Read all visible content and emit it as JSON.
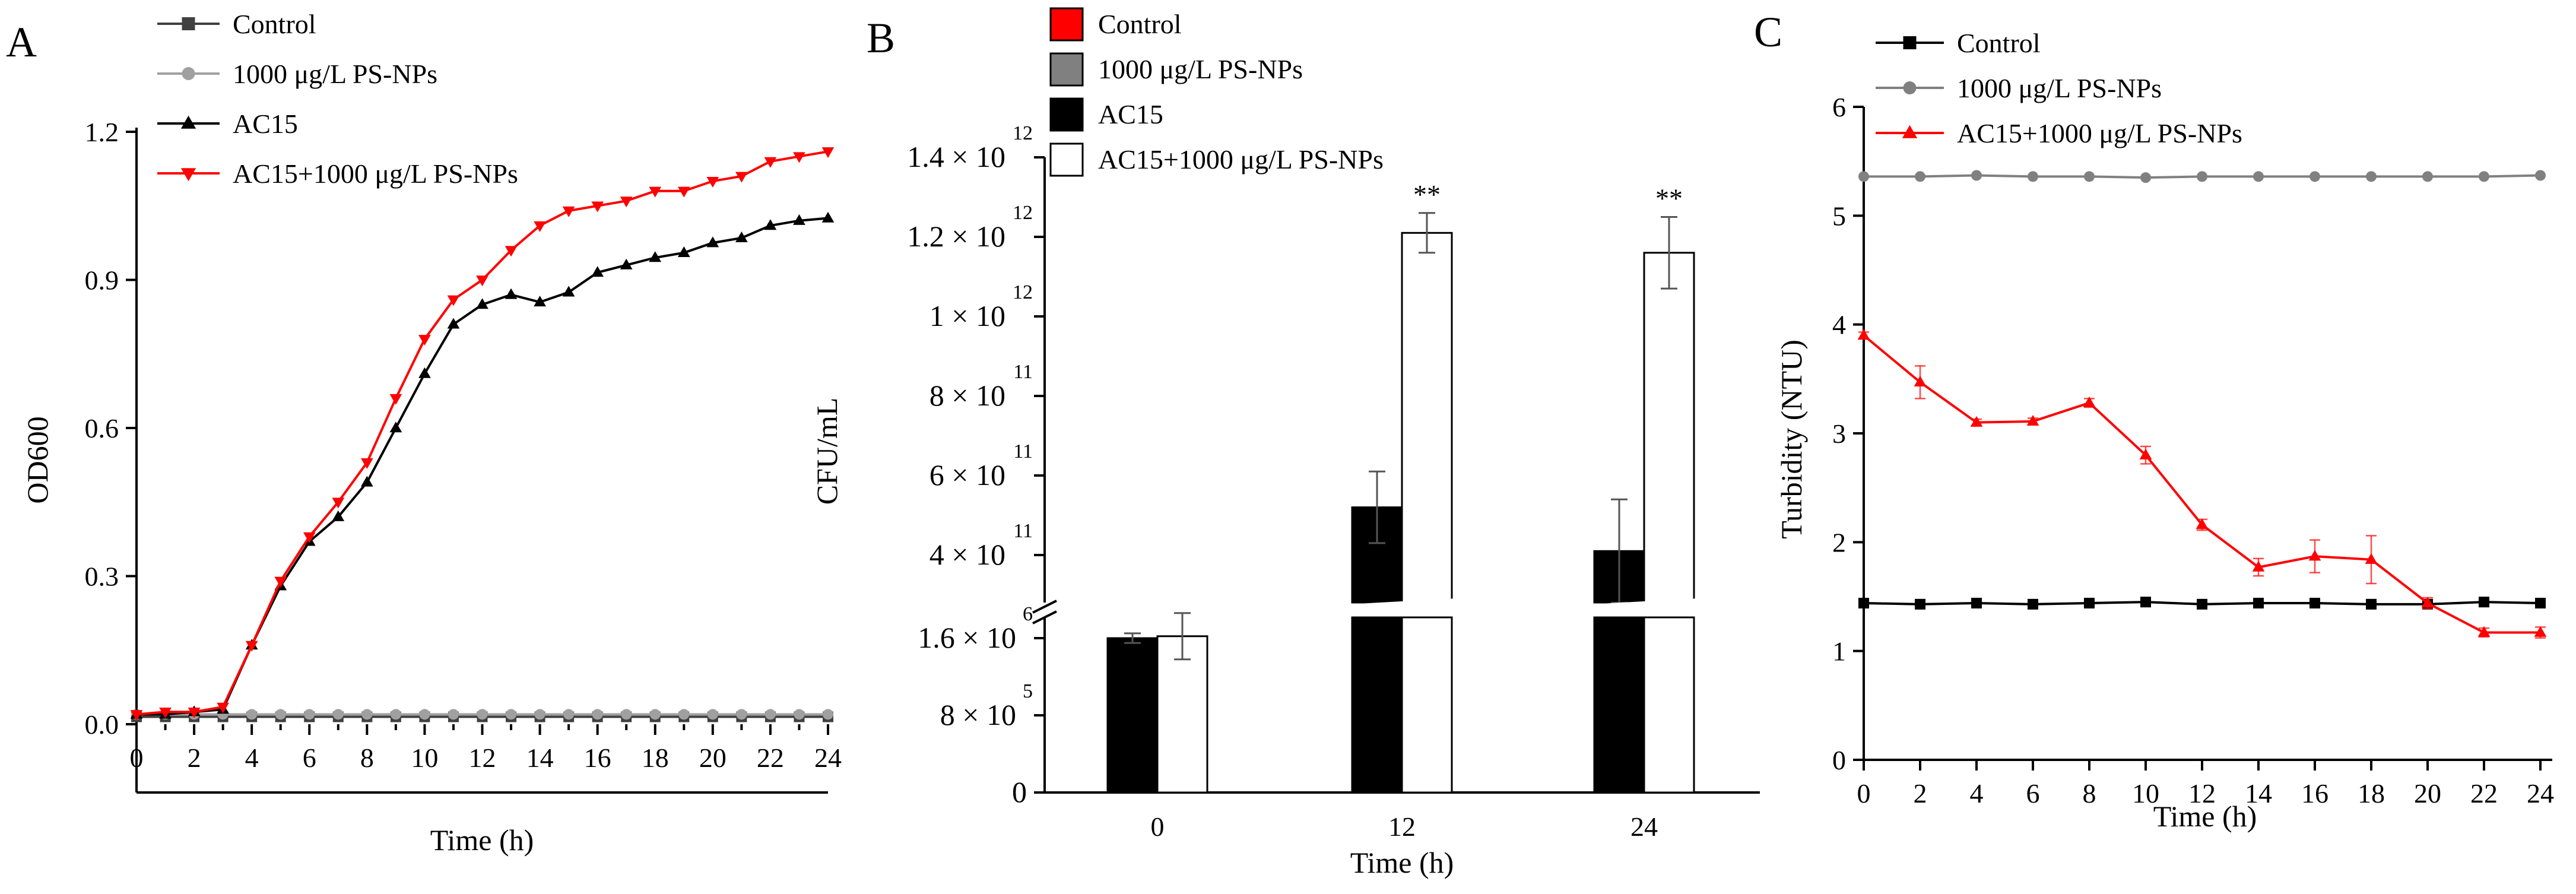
{
  "chart_data": [
    {
      "panel_label": "A",
      "type": "line",
      "title": "",
      "xlabel": "Time (h)",
      "ylabel": "OD600",
      "xlim": [
        0,
        24
      ],
      "ylim": [
        0,
        1.2
      ],
      "x_ticks": [
        "0",
        "2",
        "4",
        "6",
        "8",
        "10",
        "12",
        "14",
        "16",
        "18",
        "20",
        "22",
        "24"
      ],
      "y_ticks": [
        "0.0",
        "0.3",
        "0.6",
        "0.9",
        "1.2"
      ],
      "legend": "top-left",
      "x": [
        0,
        1,
        2,
        3,
        4,
        5,
        6,
        7,
        8,
        9,
        10,
        11,
        12,
        13,
        14,
        15,
        16,
        17,
        18,
        19,
        20,
        21,
        22,
        23,
        24
      ],
      "series": [
        {
          "name": "Control",
          "color": "#404040",
          "marker": "square",
          "values": [
            0.015,
            0.015,
            0.015,
            0.015,
            0.015,
            0.015,
            0.015,
            0.015,
            0.015,
            0.015,
            0.015,
            0.015,
            0.015,
            0.015,
            0.015,
            0.015,
            0.015,
            0.015,
            0.015,
            0.015,
            0.015,
            0.015,
            0.015,
            0.015,
            0.015
          ]
        },
        {
          "name": "1000 μg/L PS-NPs",
          "color": "#a0a0a0",
          "marker": "circle",
          "values": [
            0.02,
            0.02,
            0.02,
            0.02,
            0.02,
            0.02,
            0.02,
            0.02,
            0.02,
            0.02,
            0.02,
            0.02,
            0.02,
            0.02,
            0.02,
            0.02,
            0.02,
            0.02,
            0.02,
            0.02,
            0.02,
            0.02,
            0.02,
            0.02,
            0.02
          ]
        },
        {
          "name": "AC15",
          "color": "#000000",
          "marker": "triangle-up",
          "values": [
            0.02,
            0.02,
            0.025,
            0.03,
            0.16,
            0.28,
            0.37,
            0.42,
            0.49,
            0.6,
            0.71,
            0.81,
            0.85,
            0.87,
            0.855,
            0.875,
            0.915,
            0.93,
            0.945,
            0.955,
            0.975,
            0.985,
            1.01,
            1.02,
            1.025
          ]
        },
        {
          "name": "AC15+1000 μg/L PS-NPs",
          "color": "#ff0000",
          "marker": "triangle-down",
          "values": [
            0.02,
            0.025,
            0.025,
            0.035,
            0.16,
            0.29,
            0.38,
            0.45,
            0.53,
            0.66,
            0.78,
            0.86,
            0.9,
            0.96,
            1.01,
            1.04,
            1.05,
            1.06,
            1.08,
            1.08,
            1.1,
            1.11,
            1.14,
            1.15,
            1.16
          ]
        }
      ]
    },
    {
      "panel_label": "B",
      "type": "bar",
      "title": "",
      "xlabel": "Time (h)",
      "ylabel": "CFU/mL",
      "categories": [
        "0",
        "12",
        "24"
      ],
      "legend": "top-left",
      "lower_y_ticks": [
        {
          "value": 0,
          "label": "0"
        },
        {
          "value": 800000,
          "label": "8 × 10",
          "exp": "5"
        },
        {
          "value": 1600000,
          "label": "1.6 × 10",
          "exp": "6"
        }
      ],
      "upper_y_ticks": [
        {
          "value": 400000000000,
          "label": "4 × 10",
          "exp": "11"
        },
        {
          "value": 600000000000,
          "label": "6 × 10",
          "exp": "11"
        },
        {
          "value": 800000000000,
          "label": "8 × 10",
          "exp": "11"
        },
        {
          "value": 1000000000000,
          "label": "1 × 10",
          "exp": "12"
        },
        {
          "value": 1200000000000,
          "label": "1.2 × 10",
          "exp": "12"
        },
        {
          "value": 1400000000000,
          "label": "1.4 × 10",
          "exp": "12"
        }
      ],
      "significance_label": "**",
      "series": [
        {
          "name": "Control",
          "color": "#ff0000",
          "values": [
            0,
            0,
            0
          ]
        },
        {
          "name": "1000 μg/L PS-NPs",
          "color": "#808080",
          "values": [
            0,
            0,
            0
          ]
        },
        {
          "name": "AC15",
          "color": "#000000",
          "values": [
            1600000,
            520000000000,
            410000000000
          ],
          "errors": [
            50000,
            90000000000,
            130000000000
          ]
        },
        {
          "name": "AC15+1000 μg/L PS-NPs",
          "color": "#ffffff",
          "values": [
            1620000,
            1210000000000,
            1160000000000
          ],
          "errors": [
            240000,
            50000000000,
            90000000000
          ],
          "significant": [
            false,
            true,
            true
          ]
        }
      ]
    },
    {
      "panel_label": "C",
      "type": "line",
      "title": "",
      "xlabel": "Time (h)",
      "ylabel": "Turbidity (NTU)",
      "xlim": [
        0,
        24
      ],
      "ylim": [
        0,
        6
      ],
      "x_ticks": [
        "0",
        "2",
        "4",
        "6",
        "8",
        "10",
        "12",
        "14",
        "16",
        "18",
        "20",
        "22",
        "24"
      ],
      "y_ticks": [
        "0",
        "1",
        "2",
        "3",
        "4",
        "5",
        "6"
      ],
      "legend": "top-left",
      "x": [
        0,
        2,
        4,
        6,
        8,
        10,
        12,
        14,
        16,
        18,
        20,
        22,
        24
      ],
      "series": [
        {
          "name": "Control",
          "color": "#000000",
          "marker": "square",
          "values": [
            1.44,
            1.43,
            1.44,
            1.43,
            1.44,
            1.45,
            1.43,
            1.44,
            1.44,
            1.43,
            1.43,
            1.45,
            1.44
          ]
        },
        {
          "name": "1000 μg/L PS-NPs",
          "color": "#808080",
          "marker": "circle",
          "values": [
            5.36,
            5.36,
            5.37,
            5.36,
            5.36,
            5.35,
            5.36,
            5.36,
            5.36,
            5.36,
            5.36,
            5.36,
            5.37
          ]
        },
        {
          "name": "AC15+1000 μg/L PS-NPs",
          "color": "#ff0000",
          "marker": "triangle-up",
          "values": [
            3.9,
            3.47,
            3.1,
            3.11,
            3.28,
            2.8,
            2.16,
            1.77,
            1.87,
            1.84,
            1.44,
            1.17,
            1.17
          ],
          "errors": [
            0.03,
            0.15,
            0.03,
            0.03,
            0.04,
            0.08,
            0.05,
            0.08,
            0.15,
            0.22,
            0.05,
            0.04,
            0.05
          ]
        }
      ]
    }
  ]
}
